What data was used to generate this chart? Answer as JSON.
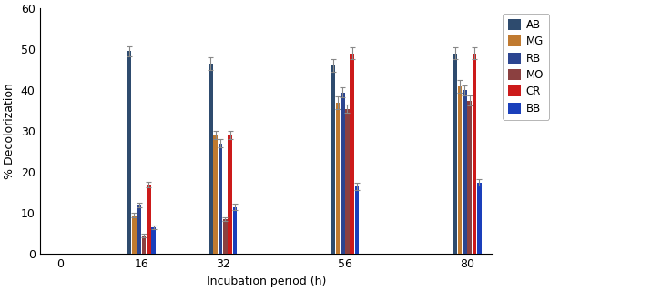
{
  "dyes": [
    "AB",
    "MG",
    "RB",
    "MO",
    "CR",
    "BB"
  ],
  "colors": [
    "#2E4B6E",
    "#C07A30",
    "#2B4590",
    "#8B4040",
    "#CC1A1A",
    "#1A3FBB"
  ],
  "values": {
    "AB": [
      0,
      49.5,
      46.5,
      46.0,
      49.0
    ],
    "MG": [
      0,
      9.5,
      29.0,
      37.0,
      41.0
    ],
    "RB": [
      0,
      12.0,
      27.0,
      39.5,
      40.0
    ],
    "MO": [
      0,
      4.5,
      8.5,
      35.5,
      37.5
    ],
    "CR": [
      0,
      17.0,
      29.0,
      49.0,
      49.0
    ],
    "BB": [
      0,
      6.5,
      11.5,
      16.5,
      17.5
    ]
  },
  "errors": {
    "AB": [
      0,
      1.2,
      1.5,
      1.5,
      1.5
    ],
    "MG": [
      0,
      0.6,
      1.0,
      1.5,
      1.5
    ],
    "RB": [
      0,
      0.6,
      1.0,
      1.2,
      1.2
    ],
    "MO": [
      0,
      0.4,
      0.5,
      1.0,
      1.2
    ],
    "CR": [
      0,
      0.7,
      1.0,
      1.5,
      1.5
    ],
    "BB": [
      0,
      0.5,
      0.7,
      0.8,
      0.8
    ]
  },
  "ylabel": "% Decolorization",
  "xlabel": "Incubation period (h)",
  "ylim": [
    0,
    60
  ],
  "yticks": [
    0,
    10,
    20,
    30,
    40,
    50,
    60
  ],
  "group_positions": [
    0,
    16,
    32,
    56,
    80
  ],
  "figsize": [
    7.15,
    3.2
  ],
  "dpi": 100
}
